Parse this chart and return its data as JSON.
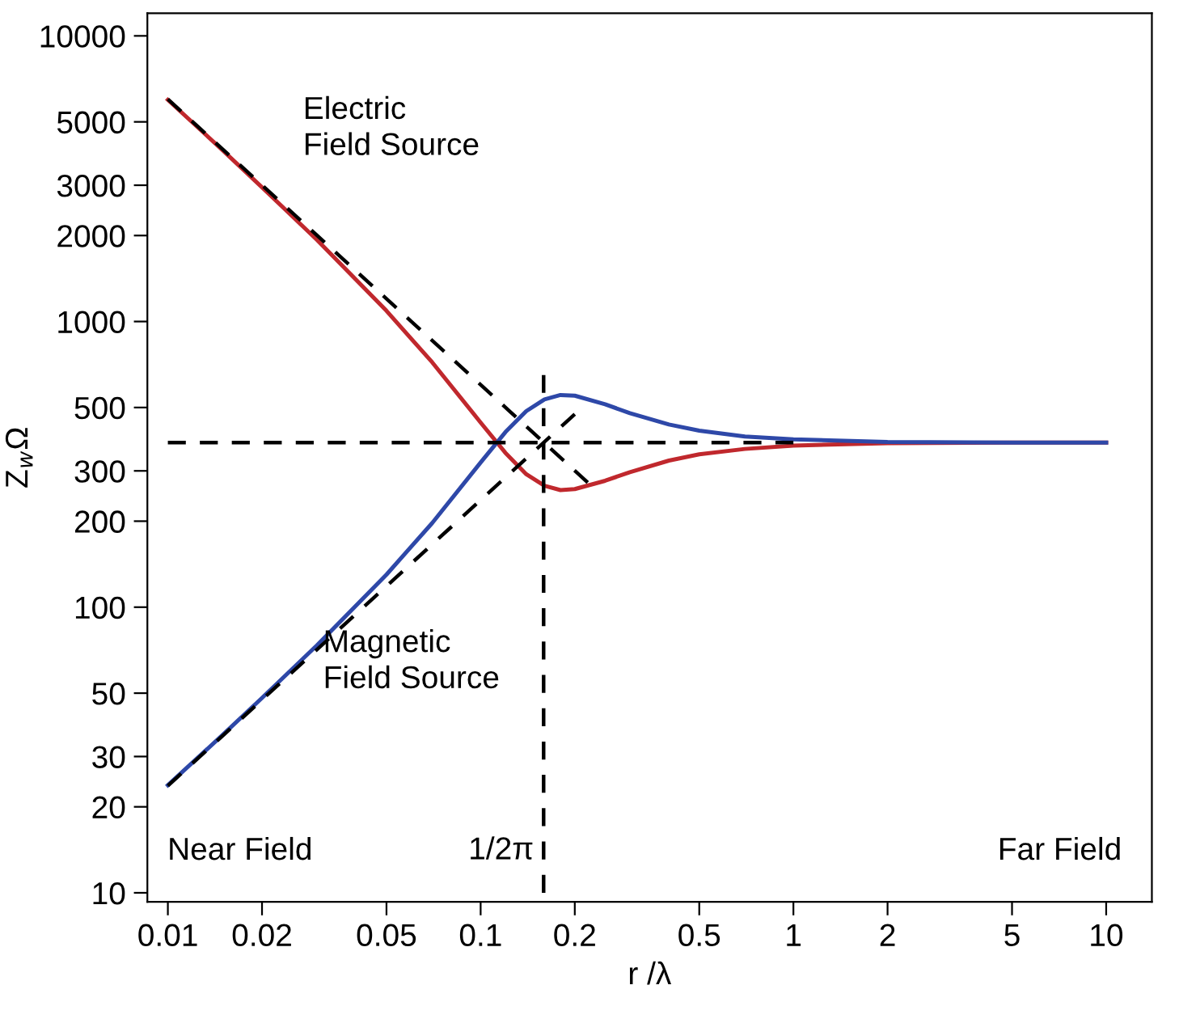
{
  "chart_data": {
    "type": "line",
    "xlabel": "r /λ",
    "ylabel": "Z$_{w}$Ω",
    "log": "xy",
    "grid": false,
    "legend": false,
    "xlim": [
      0.0086,
      14
    ],
    "ylim": [
      9.3,
      12000
    ],
    "xticks": [
      {
        "value": 0.01,
        "label": "0.01"
      },
      {
        "value": 0.02,
        "label": "0.02"
      },
      {
        "value": 0.05,
        "label": "0.05"
      },
      {
        "value": 0.1,
        "label": "0.1"
      },
      {
        "value": 0.2,
        "label": "0.2"
      },
      {
        "value": 0.5,
        "label": "0.5"
      },
      1,
      2,
      5,
      10
    ],
    "yticks": [
      10,
      20,
      30,
      50,
      100,
      200,
      300,
      500,
      1000,
      2000,
      3000,
      5000,
      10000
    ],
    "series": [
      {
        "color": "#c0282d",
        "line_style": "solid",
        "x": [
          0.01,
          0.015,
          0.02,
          0.03,
          0.05,
          0.07,
          0.1,
          0.12,
          0.14,
          0.16,
          0.18,
          0.2,
          0.25,
          0.3,
          0.4,
          0.5,
          0.7,
          1,
          2,
          5,
          10
        ],
        "values": [
          5970,
          3970,
          2950,
          1930,
          1090,
          720,
          443,
          347,
          292,
          266,
          257,
          259,
          277,
          297,
          326,
          343,
          358,
          368,
          375,
          377,
          377
        ]
      },
      {
        "color": "#2e48a8",
        "line_style": "solid",
        "x": [
          0.01,
          0.015,
          0.02,
          0.03,
          0.05,
          0.07,
          0.1,
          0.12,
          0.14,
          0.16,
          0.18,
          0.2,
          0.25,
          0.3,
          0.4,
          0.5,
          0.7,
          1,
          2,
          5,
          10
        ],
        "values": [
          23.8,
          35.8,
          48.1,
          73.6,
          130,
          197,
          321,
          410,
          486,
          534,
          553,
          550,
          513,
          478,
          436,
          415,
          396,
          387,
          379,
          377,
          377
        ]
      },
      {
        "color": "#000000",
        "line_style": "dashed",
        "x": [
          0.01,
          0.22
        ],
        "values": [
          6000,
          273
        ]
      },
      {
        "color": "#000000",
        "line_style": "dashed",
        "x": [
          0.01,
          0.2
        ],
        "values": [
          23.7,
          474
        ]
      },
      {
        "color": "#000000",
        "line_style": "dashed",
        "x": [
          0.01,
          1
        ],
        "values": [
          377,
          377
        ]
      },
      {
        "color": "#000000",
        "line_style": "dashed",
        "x": [
          0.159,
          0.159
        ],
        "values": [
          10,
          650
        ]
      }
    ],
    "annotations": [
      "Electric\nField Source",
      "Magnetic\nField Source",
      "Near Field",
      "Far Field",
      {
        "text": "1/2π",
        "x": 0.159,
        "y": 14
      }
    ]
  }
}
